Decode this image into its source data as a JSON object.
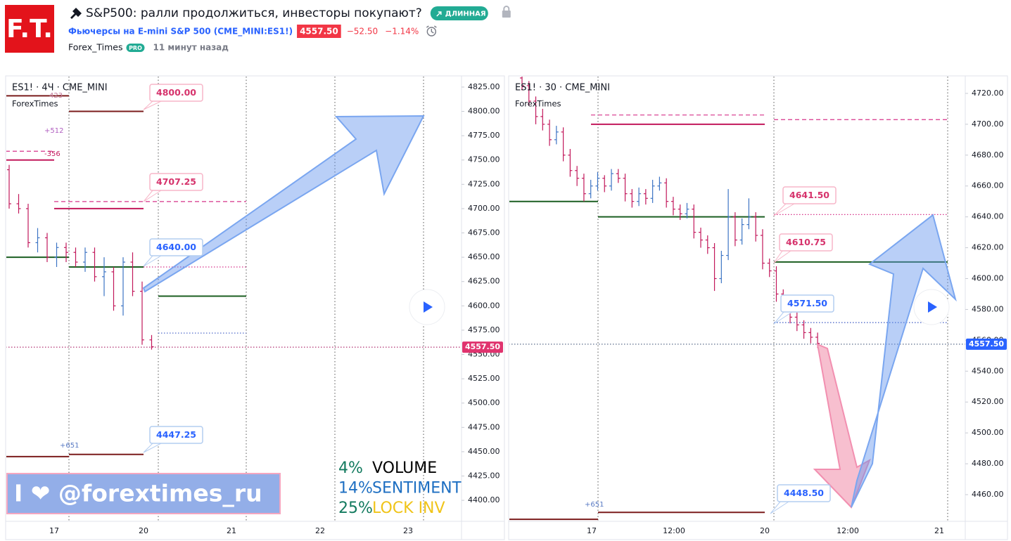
{
  "header": {
    "logo": "F.T.",
    "title": "S&P500: ралли продолжиться, инвесторы покупают?",
    "badge": "ДЛИННАЯ",
    "symbol": "Фьючерсы на E-mini S&P 500 (CME_MINI:ES1!)",
    "price": "4557.50",
    "change": "−52.50",
    "change_pct": "−1.14%",
    "author": "Forex_Times",
    "author_badge": "PRO",
    "time": "11 минут назад"
  },
  "charts": [
    {
      "type": "ohlc",
      "symbol": "ES1! · 4Ч · CME_MINI",
      "study": "ForexTimes",
      "up_color": "#3d74c4",
      "down_color": "#c2185b",
      "ylim": [
        4378.4,
        4835.8
      ],
      "yticks": [
        {
          "value": 4825,
          "label": "4825.00"
        },
        {
          "value": 4800,
          "label": "4800.00"
        },
        {
          "value": 4775,
          "label": "4775.00"
        },
        {
          "value": 4750,
          "label": "4750.00"
        },
        {
          "value": 4725,
          "label": "4725.00"
        },
        {
          "value": 4700,
          "label": "4700.00"
        },
        {
          "value": 4675,
          "label": "4675.00"
        },
        {
          "value": 4650,
          "label": "4650.00"
        },
        {
          "value": 4625,
          "label": "4625.00"
        },
        {
          "value": 4600,
          "label": "4600.00"
        },
        {
          "value": 4575,
          "label": "4575.00"
        },
        {
          "value": 4550,
          "label": "4550.00"
        },
        {
          "value": 4525,
          "label": "4525.00"
        },
        {
          "value": 4500,
          "label": "4500.00"
        },
        {
          "value": 4475,
          "label": "4475.00"
        },
        {
          "value": 4450,
          "label": "4450.00"
        },
        {
          "value": 4425,
          "label": "4425.00"
        },
        {
          "value": 4400,
          "label": "4400.00"
        }
      ],
      "xlabels": [
        "17",
        "20",
        "21",
        "22",
        "23"
      ],
      "candles": [
        [
          4740,
          4745,
          4700,
          4705
        ],
        [
          4705,
          4715,
          4695,
          4700
        ],
        [
          4700,
          4705,
          4660,
          4665
        ],
        [
          4665,
          4680,
          4655,
          4670
        ],
        [
          4670,
          4675,
          4645,
          4650
        ],
        [
          4650,
          4665,
          4640,
          4660
        ],
        [
          4660,
          4665,
          4645,
          4655
        ],
        [
          4655,
          4660,
          4640,
          4645
        ],
        [
          4645,
          4660,
          4635,
          4655
        ],
        [
          4655,
          4660,
          4625,
          4630
        ],
        [
          4630,
          4650,
          4610,
          4635
        ],
        [
          4635,
          4640,
          4595,
          4600
        ],
        [
          4600,
          4650,
          4590,
          4645
        ],
        [
          4645,
          4655,
          4610,
          4615
        ],
        [
          4615,
          4625,
          4560,
          4565
        ],
        [
          4565,
          4570,
          4555,
          4558
        ]
      ],
      "levels": [
        {
          "value": 4816,
          "color": "#7b1c1c",
          "style": "solid"
        },
        {
          "value": 4800,
          "color": "#7b1c1c",
          "style": "solid"
        },
        {
          "value": 4759,
          "color": "#d6338a",
          "style": "dashed"
        },
        {
          "value": 4750,
          "color": "#c2185b",
          "style": "solid"
        },
        {
          "value": 4707.25,
          "color": "#d6338a",
          "style": "dashed"
        },
        {
          "value": 4700,
          "color": "#c2185b",
          "style": "solid"
        },
        {
          "value": 4650,
          "color": "#1b5e20",
          "style": "solid"
        },
        {
          "value": 4640,
          "color": "#1b5e20",
          "style": "solid"
        },
        {
          "value": 4640,
          "color": "#d6338a",
          "style": "dotted"
        },
        {
          "value": 4610,
          "color": "#1b5e20",
          "style": "solid"
        },
        {
          "value": 4572,
          "color": "#3d5ac4",
          "style": "dotted"
        },
        {
          "value": 4557.5,
          "color": "#b03070",
          "style": "dotted"
        },
        {
          "value": 4447.25,
          "color": "#7b1c1c",
          "style": "solid"
        },
        {
          "value": 4445,
          "color": "#7b1c1c",
          "style": "solid"
        }
      ],
      "callouts": [
        {
          "label": "4800.00",
          "tone": "pink"
        },
        {
          "label": "4707.25",
          "tone": "pink"
        },
        {
          "label": "4640.00",
          "tone": "blue"
        },
        {
          "label": "4447.25",
          "tone": "blue"
        }
      ],
      "notes": [
        "423",
        "+512",
        "-356",
        "+651"
      ],
      "last_price": {
        "value": 4557.5,
        "label": "4557.50",
        "color": "#e0336e"
      }
    },
    {
      "type": "ohlc",
      "symbol": "ES1! · 30 · CME_MINI",
      "study": "ForexTimes",
      "up_color": "#3d74c4",
      "down_color": "#c2185b",
      "ylim": [
        4442.7,
        4730.9
      ],
      "yticks": [
        {
          "value": 4720,
          "label": "4720.00"
        },
        {
          "value": 4700,
          "label": "4700.00"
        },
        {
          "value": 4680,
          "label": "4680.00"
        },
        {
          "value": 4660,
          "label": "4660.00"
        },
        {
          "value": 4640,
          "label": "4640.00"
        },
        {
          "value": 4620,
          "label": "4620.00"
        },
        {
          "value": 4600,
          "label": "4600.00"
        },
        {
          "value": 4580,
          "label": "4580.00"
        },
        {
          "value": 4560,
          "label": "4560.00"
        },
        {
          "value": 4540,
          "label": "4540.00"
        },
        {
          "value": 4520,
          "label": "4520.00"
        },
        {
          "value": 4500,
          "label": "4500.00"
        },
        {
          "value": 4480,
          "label": "4480.00"
        },
        {
          "value": 4460,
          "label": "4460.00"
        }
      ],
      "xlabels": [
        "17",
        "12:00",
        "20",
        "12:00",
        "21"
      ],
      "candles": [
        [
          4730,
          4733,
          4722,
          4725
        ],
        [
          4725,
          4728,
          4712,
          4715
        ],
        [
          4715,
          4718,
          4700,
          4705
        ],
        [
          4705,
          4710,
          4696,
          4700
        ],
        [
          4700,
          4703,
          4686,
          4690
        ],
        [
          4690,
          4699,
          4687,
          4695
        ],
        [
          4695,
          4698,
          4676,
          4680
        ],
        [
          4680,
          4684,
          4666,
          4670
        ],
        [
          4670,
          4673,
          4660,
          4665
        ],
        [
          4665,
          4668,
          4650,
          4655
        ],
        [
          4655,
          4664,
          4652,
          4660
        ],
        [
          4660,
          4669,
          4657,
          4665
        ],
        [
          4665,
          4667,
          4656,
          4660
        ],
        [
          4660,
          4671,
          4657,
          4668
        ],
        [
          4668,
          4671,
          4662,
          4665
        ],
        [
          4665,
          4668,
          4650,
          4655
        ],
        [
          4655,
          4658,
          4646,
          4650
        ],
        [
          4650,
          4659,
          4647,
          4655
        ],
        [
          4655,
          4658,
          4648,
          4652
        ],
        [
          4652,
          4664,
          4649,
          4660
        ],
        [
          4660,
          4666,
          4657,
          4662
        ],
        [
          4662,
          4665,
          4646,
          4650
        ],
        [
          4650,
          4653,
          4641,
          4645
        ],
        [
          4645,
          4648,
          4638,
          4642
        ],
        [
          4642,
          4649,
          4639,
          4645
        ],
        [
          4645,
          4648,
          4626,
          4630
        ],
        [
          4630,
          4633,
          4620,
          4625
        ],
        [
          4625,
          4628,
          4616,
          4620
        ],
        [
          4620,
          4623,
          4592,
          4600
        ],
        [
          4600,
          4618,
          4597,
          4615
        ],
        [
          4615,
          4658,
          4612,
          4640
        ],
        [
          4640,
          4643,
          4621,
          4625
        ],
        [
          4625,
          4639,
          4622,
          4635
        ],
        [
          4635,
          4652,
          4632,
          4640
        ],
        [
          4640,
          4643,
          4624,
          4628
        ],
        [
          4628,
          4632,
          4606,
          4610
        ],
        [
          4610,
          4613,
          4601,
          4605
        ],
        [
          4605,
          4608,
          4585,
          4590
        ],
        [
          4590,
          4593,
          4576,
          4580
        ],
        [
          4580,
          4583,
          4571,
          4575
        ],
        [
          4575,
          4578,
          4566,
          4570
        ],
        [
          4570,
          4573,
          4561,
          4565
        ],
        [
          4565,
          4568,
          4558,
          4562
        ],
        [
          4562,
          4565,
          4555,
          4558
        ]
      ],
      "levels": [
        {
          "value": 4706,
          "color": "#d6338a",
          "style": "dashed"
        },
        {
          "value": 4700,
          "color": "#c2185b",
          "style": "solid"
        },
        {
          "value": 4703,
          "color": "#d6338a",
          "style": "dashed"
        },
        {
          "value": 4650,
          "color": "#1b5e20",
          "style": "solid"
        },
        {
          "value": 4640,
          "color": "#1b5e20",
          "style": "solid"
        },
        {
          "value": 4641.5,
          "color": "#d6338a",
          "style": "dotted"
        },
        {
          "value": 4610.75,
          "color": "#1b5e20",
          "style": "solid"
        },
        {
          "value": 4571.5,
          "color": "#3d5ac4",
          "style": "dotted"
        },
        {
          "value": 4557.5,
          "color": "#5a6b8a",
          "style": "dotted"
        },
        {
          "value": 4448.5,
          "color": "#7b1c1c",
          "style": "solid"
        },
        {
          "value": 4444,
          "color": "#7b1c1c",
          "style": "solid"
        }
      ],
      "callouts": [
        {
          "label": "4641.50",
          "tone": "pink"
        },
        {
          "label": "4610.75",
          "tone": "pink"
        },
        {
          "label": "4571.50",
          "tone": "blue"
        },
        {
          "label": "4448.50",
          "tone": "blue"
        }
      ],
      "notes": [
        "+651"
      ],
      "last_price": {
        "value": 4557.5,
        "label": "4557.50",
        "color": "#2962ff"
      }
    }
  ],
  "banner": "I ❤ @forextimes_ru",
  "stats": [
    {
      "pct": "4%",
      "label": "VOLUME"
    },
    {
      "pct": "14%",
      "label": "SENTIMENT"
    },
    {
      "pct": "25%",
      "label": "LOCK INV"
    }
  ]
}
